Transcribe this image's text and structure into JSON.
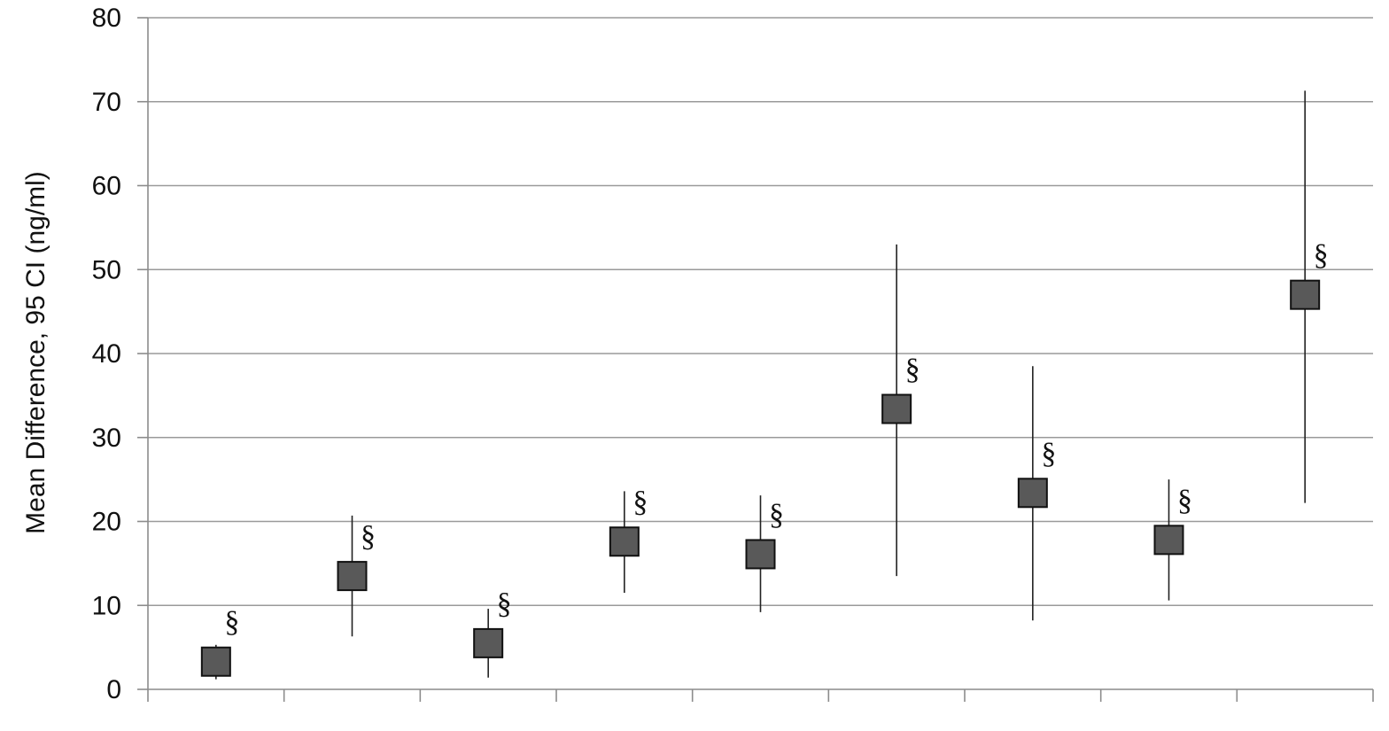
{
  "chart_data": {
    "type": "scatter",
    "title": "",
    "xlabel": "",
    "ylabel": "Mean Difference, 95 CI (ng/ml)",
    "ylim": [
      0,
      80
    ],
    "yticks": [
      "0",
      "10",
      "20",
      "30",
      "40",
      "50",
      "60",
      "70",
      "80"
    ],
    "grid": true,
    "categories": [
      "",
      "",
      "",
      "",
      "",
      "",
      "",
      "",
      ""
    ],
    "series": [
      {
        "values": [
          3.3,
          13.5,
          5.5,
          17.6,
          16.1,
          33.4,
          23.4,
          17.8,
          47.0
        ],
        "ci_low": [
          1.2,
          6.3,
          1.4,
          11.5,
          9.2,
          13.5,
          8.2,
          10.6,
          22.2
        ],
        "ci_high": [
          5.3,
          20.7,
          9.6,
          23.6,
          23.1,
          53.0,
          38.5,
          25.0,
          71.3
        ],
        "point_labels": [
          "§",
          "§",
          "§",
          "§",
          "§",
          "§",
          "§",
          "§",
          "§"
        ]
      }
    ],
    "colors": {
      "marker_fill": "#595959",
      "marker_stroke": "#111111",
      "grid": "#9a9a9a",
      "axis": "#8c8c8c"
    }
  }
}
